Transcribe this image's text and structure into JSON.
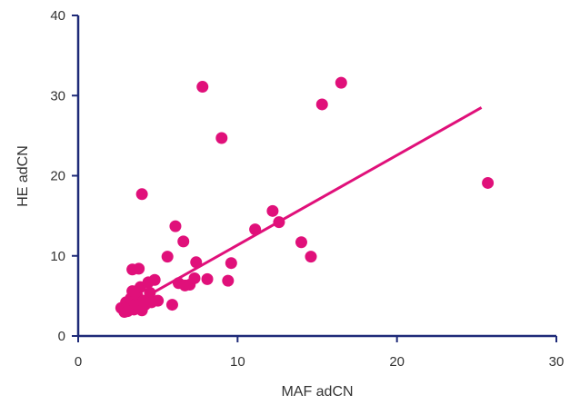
{
  "chart_data": {
    "type": "scatter",
    "xlabel": "MAF adCN",
    "ylabel": "HE adCN",
    "xlim": [
      0,
      30
    ],
    "ylim": [
      0,
      40
    ],
    "x_ticks": [
      "0",
      "10",
      "20",
      "30"
    ],
    "y_ticks": [
      "0",
      "10",
      "20",
      "30",
      "40"
    ],
    "grid": false,
    "legend": "none",
    "colors": {
      "points": "#e0107a",
      "trendline": "#e0107a",
      "axes": "#1e2a78"
    },
    "trendline": {
      "x_start": 3.0,
      "y_start": 3.5,
      "x_end": 25.3,
      "y_end": 28.5
    },
    "points": [
      {
        "x": 2.7,
        "y": 3.5
      },
      {
        "x": 2.9,
        "y": 3.0
      },
      {
        "x": 3.0,
        "y": 4.2
      },
      {
        "x": 3.1,
        "y": 3.1
      },
      {
        "x": 3.2,
        "y": 3.6
      },
      {
        "x": 3.3,
        "y": 4.7
      },
      {
        "x": 3.4,
        "y": 5.6
      },
      {
        "x": 3.4,
        "y": 8.3
      },
      {
        "x": 3.5,
        "y": 3.3
      },
      {
        "x": 3.6,
        "y": 4.0
      },
      {
        "x": 3.7,
        "y": 5.1
      },
      {
        "x": 3.8,
        "y": 8.4
      },
      {
        "x": 3.9,
        "y": 6.1
      },
      {
        "x": 4.0,
        "y": 17.7
      },
      {
        "x": 4.0,
        "y": 3.2
      },
      {
        "x": 4.1,
        "y": 4.4
      },
      {
        "x": 4.2,
        "y": 3.9
      },
      {
        "x": 4.4,
        "y": 6.7
      },
      {
        "x": 4.5,
        "y": 5.4
      },
      {
        "x": 4.6,
        "y": 4.2
      },
      {
        "x": 4.8,
        "y": 7.0
      },
      {
        "x": 5.0,
        "y": 4.4
      },
      {
        "x": 5.6,
        "y": 9.9
      },
      {
        "x": 5.9,
        "y": 3.9
      },
      {
        "x": 6.1,
        "y": 13.7
      },
      {
        "x": 6.3,
        "y": 6.6
      },
      {
        "x": 6.6,
        "y": 11.8
      },
      {
        "x": 6.7,
        "y": 6.3
      },
      {
        "x": 7.0,
        "y": 6.4
      },
      {
        "x": 7.3,
        "y": 7.2
      },
      {
        "x": 7.4,
        "y": 9.2
      },
      {
        "x": 7.8,
        "y": 31.1
      },
      {
        "x": 8.1,
        "y": 7.1
      },
      {
        "x": 9.0,
        "y": 24.7
      },
      {
        "x": 9.4,
        "y": 6.9
      },
      {
        "x": 9.6,
        "y": 9.1
      },
      {
        "x": 11.1,
        "y": 13.3
      },
      {
        "x": 12.2,
        "y": 15.6
      },
      {
        "x": 12.6,
        "y": 14.2
      },
      {
        "x": 14.0,
        "y": 11.7
      },
      {
        "x": 14.6,
        "y": 9.9
      },
      {
        "x": 15.3,
        "y": 28.9
      },
      {
        "x": 16.5,
        "y": 31.6
      },
      {
        "x": 25.7,
        "y": 19.1
      }
    ]
  }
}
